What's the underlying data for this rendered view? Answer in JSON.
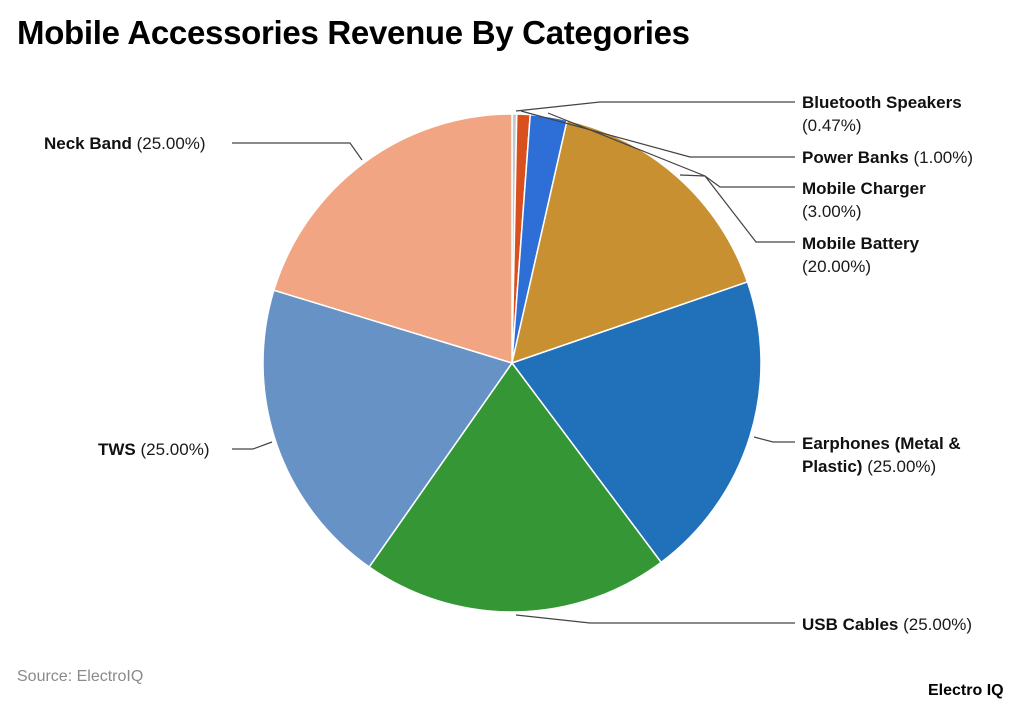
{
  "title": "Mobile Accessories Revenue By Categories",
  "source": "Source: ElectroIQ",
  "brand": "Electro IQ",
  "slices": [
    {
      "name": "Bluetooth Speakers",
      "pct_label": "(0.47%)",
      "color": "#c6c9cc"
    },
    {
      "name": "Power Banks",
      "pct_label": "(1.00%)",
      "color": "#d9501e"
    },
    {
      "name": "Mobile Charger",
      "pct_label": "(3.00%)",
      "color": "#2d6fd6"
    },
    {
      "name": "Mobile Battery",
      "pct_label": "(20.00%)",
      "color": "#c99031"
    },
    {
      "name": "Earphones (Metal &",
      "name2": "Plastic)",
      "pct_label": "(25.00%)",
      "color": "#2071b9"
    },
    {
      "name": "USB Cables",
      "pct_label": "(25.00%)",
      "color": "#359636"
    },
    {
      "name": "TWS",
      "pct_label": "(25.00%)",
      "color": "#6792c6"
    },
    {
      "name": "Neck Band",
      "pct_label": "(25.00%)",
      "color": "#f2a583"
    }
  ],
  "chart_data": {
    "type": "pie",
    "title": "Mobile Accessories Revenue By Categories",
    "categories": [
      "Bluetooth Speakers",
      "Power Banks",
      "Mobile Charger",
      "Mobile Battery",
      "Earphones (Metal & Plastic)",
      "USB Cables",
      "TWS",
      "Neck Band"
    ],
    "values": [
      0.47,
      1.0,
      3.0,
      20.0,
      25.0,
      25.0,
      25.0,
      25.0
    ],
    "colors": [
      "#c6c9cc",
      "#d9501e",
      "#2d6fd6",
      "#c99031",
      "#2071b9",
      "#359636",
      "#6792c6",
      "#f2a583"
    ],
    "legend_position": "outside labels with leader lines",
    "source": "Source: ElectroIQ"
  }
}
